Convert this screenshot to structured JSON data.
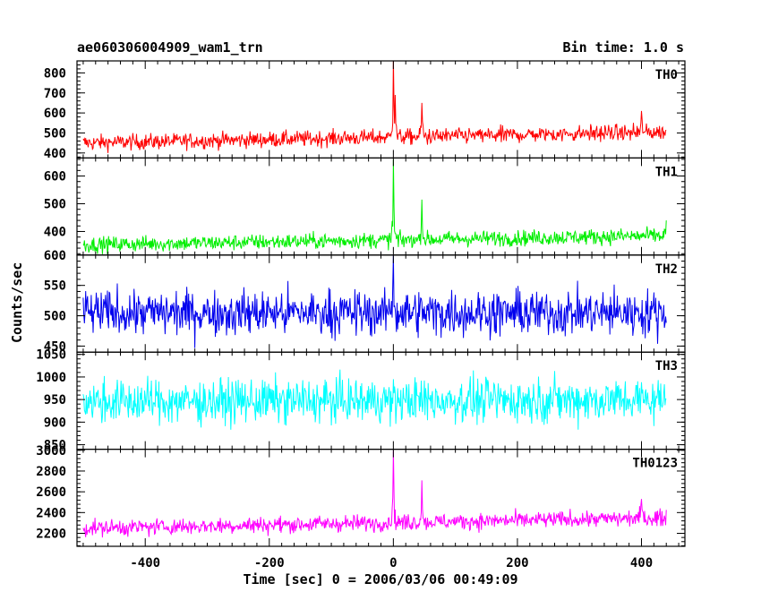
{
  "header": {
    "title": "ae060306004909_wam1_trn",
    "bin_time": "Bin time: 1.0 s"
  },
  "chart_data": {
    "type": "line",
    "xlabel": "Time [sec] 0 = 2006/03/06 00:49:09",
    "ylabel": "Counts/sec",
    "xlim": [
      -510,
      470
    ],
    "x_ticks": [
      -400,
      -200,
      0,
      200,
      400
    ],
    "x_range_data": [
      -500,
      440
    ],
    "bin_time_s": 1.0,
    "panels": [
      {
        "name": "TH0",
        "color": "#ff0000",
        "ylim": [
          375,
          860
        ],
        "y_ticks": [
          400,
          500,
          600,
          700,
          800
        ],
        "y_tick_labels": [
          "400",
          "500",
          "600",
          "700",
          "800"
        ],
        "baseline_start": 450,
        "baseline_end": 505,
        "noise": 28,
        "features": [
          {
            "t": 0,
            "peak": 860
          },
          {
            "t": 3,
            "peak": 690
          },
          {
            "t": 46,
            "peak": 650
          },
          {
            "t": 400,
            "peak": 610
          }
        ]
      },
      {
        "name": "TH1",
        "color": "#00ee00",
        "ylim": [
          315,
          665
        ],
        "y_ticks": [
          400,
          500,
          600
        ],
        "y_tick_labels": [
          "400",
          "500",
          "600"
        ],
        "baseline_start": 352,
        "baseline_end": 385,
        "noise": 20,
        "features": [
          {
            "t": 0,
            "peak": 660
          },
          {
            "t": 46,
            "peak": 515
          },
          {
            "t": 440,
            "peak": 440
          }
        ]
      },
      {
        "name": "TH2",
        "color": "#0000ee",
        "ylim": [
          440,
          600
        ],
        "y_ticks": [
          450,
          500,
          550,
          600
        ],
        "y_tick_labels": [
          "450",
          "500",
          "550",
          "600"
        ],
        "baseline_start": 505,
        "baseline_end": 505,
        "noise": 26,
        "features": [
          {
            "t": 0,
            "peak": 600
          }
        ]
      },
      {
        "name": "TH3",
        "color": "#00ffff",
        "ylim": [
          840,
          1055
        ],
        "y_ticks": [
          850,
          900,
          950,
          1000,
          1050
        ],
        "y_tick_labels": [
          "850",
          "900",
          "950",
          "1000",
          "1050"
        ],
        "baseline_start": 945,
        "baseline_end": 950,
        "noise": 34,
        "features": []
      },
      {
        "name": "TH0123",
        "color": "#ff00ff",
        "ylim": [
          2075,
          3010
        ],
        "y_ticks": [
          2200,
          2400,
          2600,
          2800,
          3000
        ],
        "y_tick_labels": [
          "2200",
          "2400",
          "2600",
          "2800",
          "3000"
        ],
        "baseline_start": 2250,
        "baseline_end": 2350,
        "noise": 55,
        "features": [
          {
            "t": 0,
            "peak": 3000
          },
          {
            "t": 46,
            "peak": 2710
          },
          {
            "t": 400,
            "peak": 2530
          }
        ]
      }
    ]
  }
}
